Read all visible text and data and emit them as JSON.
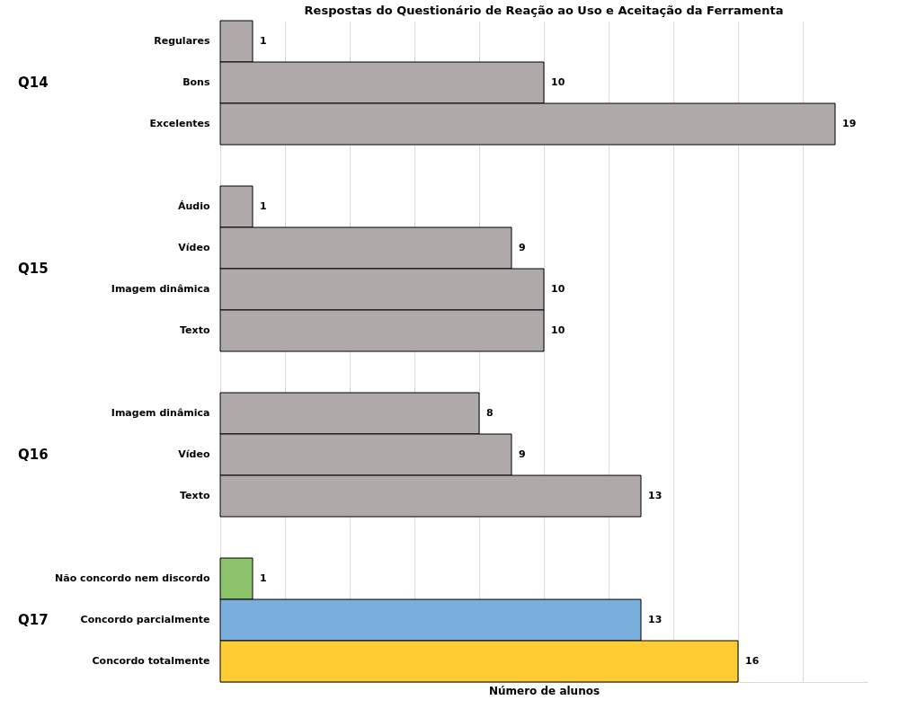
{
  "chart_data": {
    "type": "bar",
    "orientation": "horizontal",
    "title": "Respostas do Questionário de Reação ao Uso e Aceitação da Ferramenta",
    "xlabel": "Número de alunos",
    "categories": [
      "Regulares",
      "Bons",
      "Excelentes",
      null,
      "Áudio",
      "Vídeo",
      "Imagem dinâmica",
      "Texto",
      null,
      "Imagem dinâmica",
      "Vídeo",
      "Texto",
      null,
      "Não concordo nem discordo",
      "Concordo parcialmente",
      "Concordo totalmente"
    ],
    "values": [
      1,
      10,
      19,
      null,
      1,
      9,
      10,
      10,
      null,
      8,
      9,
      13,
      null,
      1,
      13,
      16
    ],
    "colors": [
      "#aeaaaa",
      "#aeaaaa",
      "#aeaaaa",
      null,
      "#aeaaaa",
      "#aeaaaa",
      "#aeaaaa",
      "#aeaaaa",
      null,
      "#aeaaaa",
      "#aeaaaa",
      "#aeaaaa",
      null,
      "#8bc26a",
      "#7aaedd",
      "#ffcc33"
    ],
    "annotations": [
      "Q14",
      "Q15",
      "Q16",
      "Q17"
    ],
    "xlim": [
      0,
      20
    ],
    "xticks": [
      {
        "value": 0,
        "label": null
      },
      {
        "value": 2,
        "label": null
      },
      {
        "value": 4,
        "label": null
      },
      {
        "value": 6,
        "label": null
      },
      {
        "value": 8,
        "label": null
      },
      {
        "value": 10,
        "label": null
      },
      {
        "value": 12,
        "label": null
      },
      {
        "value": 14,
        "label": null
      },
      {
        "value": 16,
        "label": null
      },
      {
        "value": 18,
        "label": null
      }
    ],
    "tick_labels": "y",
    "grid": "x",
    "data_labels": true
  }
}
